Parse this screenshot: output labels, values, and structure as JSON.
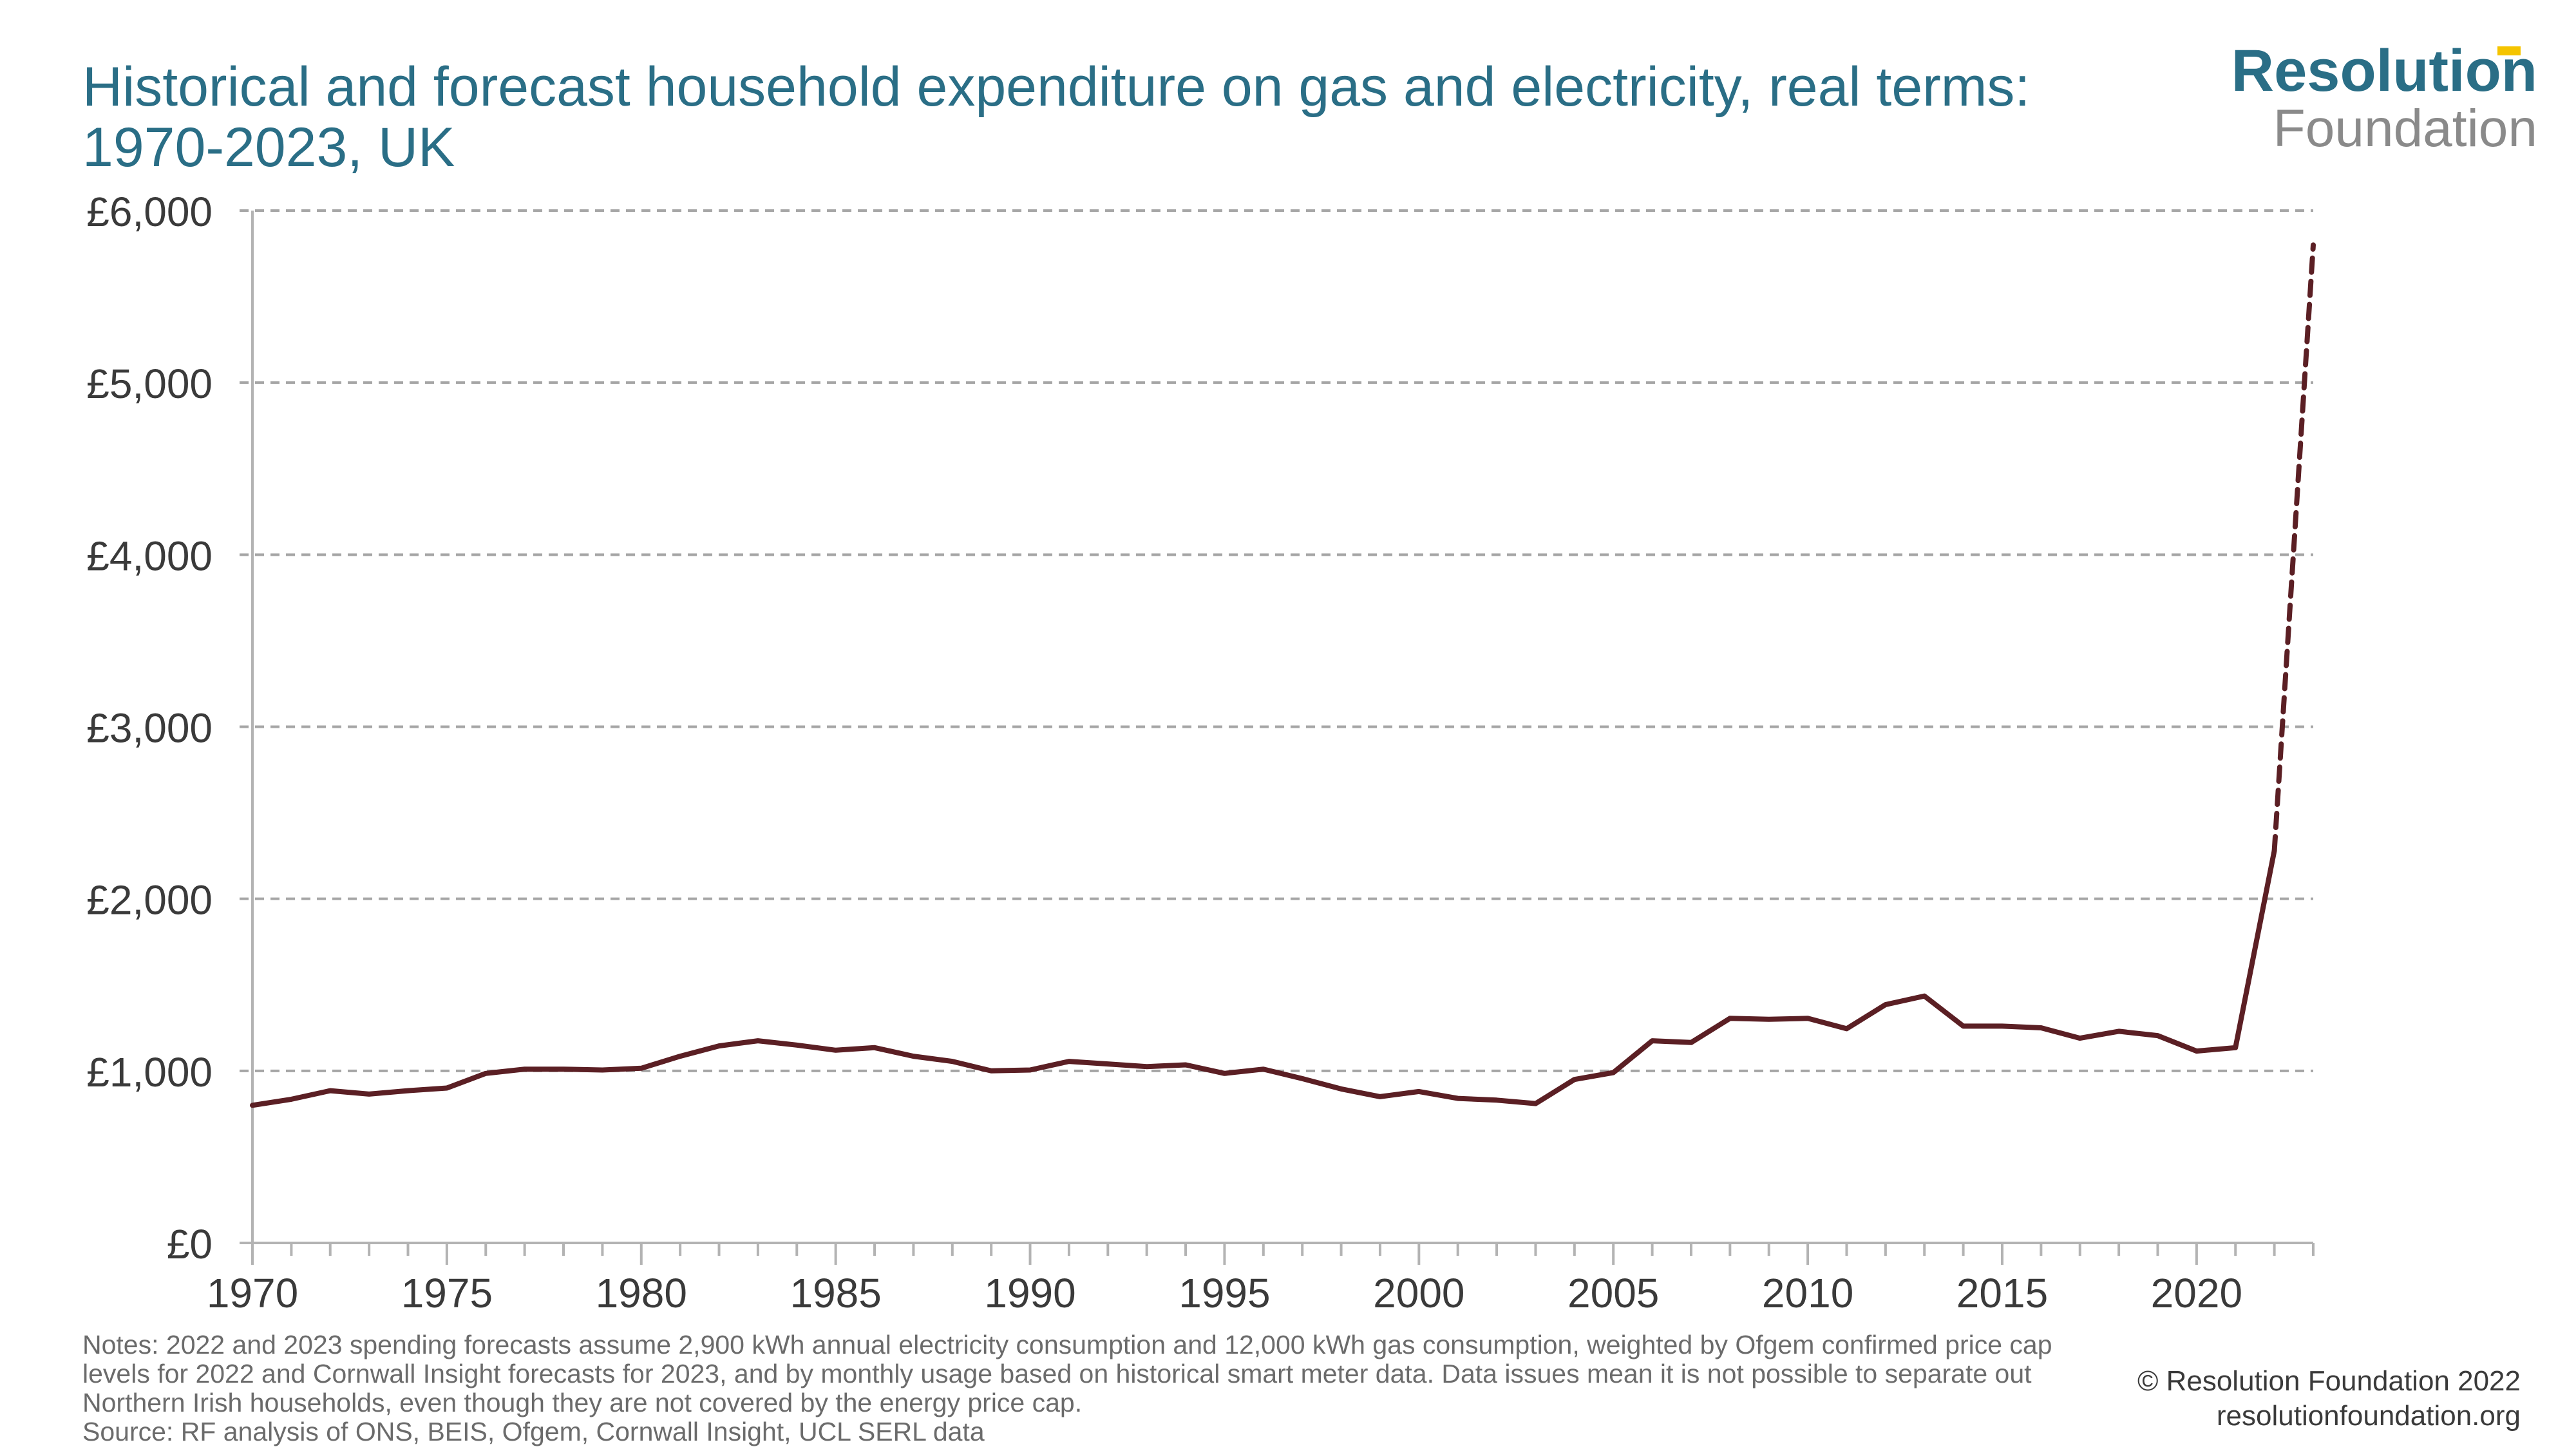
{
  "title": "Historical and forecast household expenditure on gas and electricity, real terms: 1970-2023, UK",
  "logo": {
    "line1": "Resolution",
    "line2": "Foundation"
  },
  "notes": {
    "notes_text": "Notes: 2022 and 2023 spending forecasts assume 2,900 kWh annual electricity consumption and 12,000 kWh gas consumption, weighted by Ofgem confirmed price cap levels for 2022 and Cornwall Insight forecasts for 2023, and by monthly usage based on historical smart meter data. Data issues mean it is not possible to separate out Northern Irish households, even though they are not covered by the energy price cap.",
    "source_text": "Source: RF analysis of ONS, BEIS, Ofgem, Cornwall Insight, UCL SERL data"
  },
  "copyright": {
    "line1": "© Resolution Foundation 2022",
    "line2": "resolutionfoundation.org"
  },
  "colors": {
    "line": "#5b1f24",
    "title": "#2a6e86",
    "grid": "#a6a6a6",
    "axis": "#b3b3b3",
    "logo_accent": "#f5c400"
  },
  "chart_data": {
    "type": "line",
    "title": "Historical and forecast household expenditure on gas and electricity, real terms: 1970-2023, UK",
    "xlabel": "",
    "ylabel": "",
    "xlim": [
      1970,
      2023
    ],
    "ylim": [
      0,
      6000
    ],
    "x_ticks": [
      1970,
      1975,
      1980,
      1985,
      1990,
      1995,
      2000,
      2005,
      2010,
      2015,
      2020
    ],
    "y_ticks": [
      0,
      1000,
      2000,
      3000,
      4000,
      5000,
      6000
    ],
    "y_tick_labels": [
      "£0",
      "£1,000",
      "£2,000",
      "£3,000",
      "£4,000",
      "£5,000",
      "£6,000"
    ],
    "grid": "horizontal dashed",
    "legend": "none",
    "series": [
      {
        "style": "solid",
        "x": [
          1970,
          1971,
          1972,
          1973,
          1974,
          1975,
          1976,
          1977,
          1978,
          1979,
          1980,
          1981,
          1982,
          1983,
          1984,
          1985,
          1986,
          1987,
          1988,
          1989,
          1990,
          1991,
          1992,
          1993,
          1994,
          1995,
          1996,
          1997,
          1998,
          1999,
          2000,
          2001,
          2002,
          2003,
          2004,
          2005,
          2006,
          2007,
          2008,
          2009,
          2010,
          2011,
          2012,
          2013,
          2014,
          2015,
          2016,
          2017,
          2018,
          2019,
          2020,
          2021,
          2022
        ],
        "y": [
          800,
          835,
          885,
          865,
          885,
          900,
          985,
          1010,
          1010,
          1005,
          1015,
          1085,
          1145,
          1175,
          1150,
          1120,
          1135,
          1085,
          1055,
          1000,
          1005,
          1055,
          1040,
          1025,
          1035,
          985,
          1010,
          955,
          895,
          850,
          880,
          840,
          830,
          810,
          950,
          990,
          1175,
          1165,
          1305,
          1300,
          1305,
          1245,
          1385,
          1435,
          1260,
          1260,
          1250,
          1190,
          1230,
          1205,
          1115,
          1135,
          2280
        ]
      },
      {
        "style": "dashed",
        "x": [
          2022,
          2023
        ],
        "y": [
          2280,
          5800
        ]
      }
    ]
  }
}
